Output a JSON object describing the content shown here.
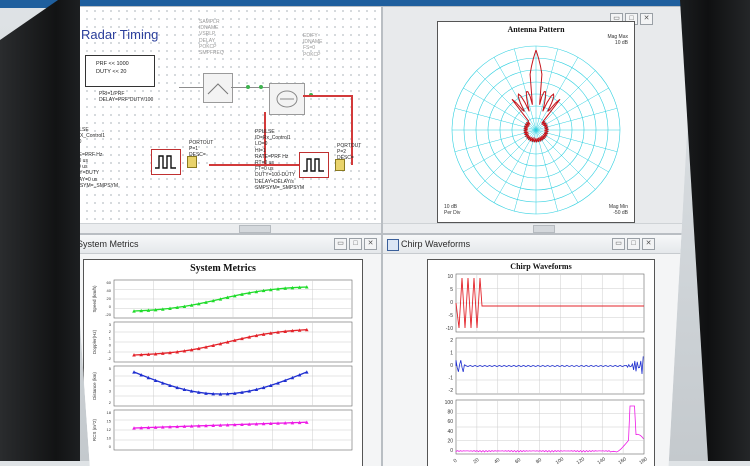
{
  "schematic": {
    "title": "Radar Timing",
    "param_box": [
      "PRF << 1000",
      "DUTY << 20"
    ],
    "params_text": "PRI=1/PRF\nDELAY=PRF*DUTY/100",
    "grey_params": "SAMPLR\nIDNAME\nVSRLP\nDELAY\nPOKCP\nSMPFREQ",
    "grey_params2": "EDIFY\nIDNAME\nFS=0\nPOKCP",
    "pulse1_params": "PPULSE\nID=TX_Control1\nLO=0\nHI=1\nRATE=PRF Hz\nRT=0 us\nFT=0 us\nDUTY=DUTY\nDELAY=0 us\nSMPSYM=_SMPSYM",
    "pulse2_params": "PPULSE\nID=Rx_Control1\nLO=0\nHI=1\nRATE=PRF Hz\nRT=0 us\nFT=0 us\nDUTY=100-DUTY\nDELAY=DELAY/s\nSMPSYM=_SMPSYM",
    "port1_label": "PORTOUT\nP=1\nDESC=",
    "port2_label": "PORTOUT\nP=2\nDESC="
  },
  "antenna": {
    "title": "Antenna Pattern",
    "top_right": "Mag Max\n10 dB",
    "bottom_left": "10 dB\nPer Div",
    "bottom_right": "Mag Min\n-50 dB"
  },
  "metrics": {
    "window_title": "System Metrics",
    "plot_title": "System Metrics",
    "ylabels": [
      "Speed (km/h)",
      "Doppler(Hz)",
      "Distance (km)",
      "RCS (m^2)"
    ],
    "green_ticks": [
      "60",
      "40",
      "20",
      "0",
      "-20"
    ],
    "red_ticks": [
      "3",
      "2",
      "1",
      "0",
      "-1",
      "-2"
    ],
    "blue_ticks": [
      "5",
      "4",
      "3",
      "2"
    ],
    "magenta_ticks": [
      "18",
      "15",
      "12",
      "10",
      "0"
    ]
  },
  "chirp": {
    "window_title": "Chirp Waveforms",
    "plot_title": "Chirp Waveforms",
    "red_ticks": [
      "10",
      "5",
      "0",
      "-5",
      "-10"
    ],
    "blue_ticks": [
      "2",
      "1",
      "0",
      "-1",
      "-2"
    ],
    "magenta_ticks": [
      "100",
      "80",
      "60",
      "40",
      "20",
      "0"
    ],
    "x_ticks": [
      "0",
      "20",
      "40",
      "60",
      "80",
      "100",
      "120",
      "140",
      "160",
      "180"
    ]
  },
  "colors": {
    "green": "#1fdc2a",
    "red": "#e3232a",
    "blue": "#1f2fd0",
    "magenta": "#ee1ae6",
    "antenna_grid": "#2fd0e0",
    "antenna_trace": "#c4141c"
  }
}
